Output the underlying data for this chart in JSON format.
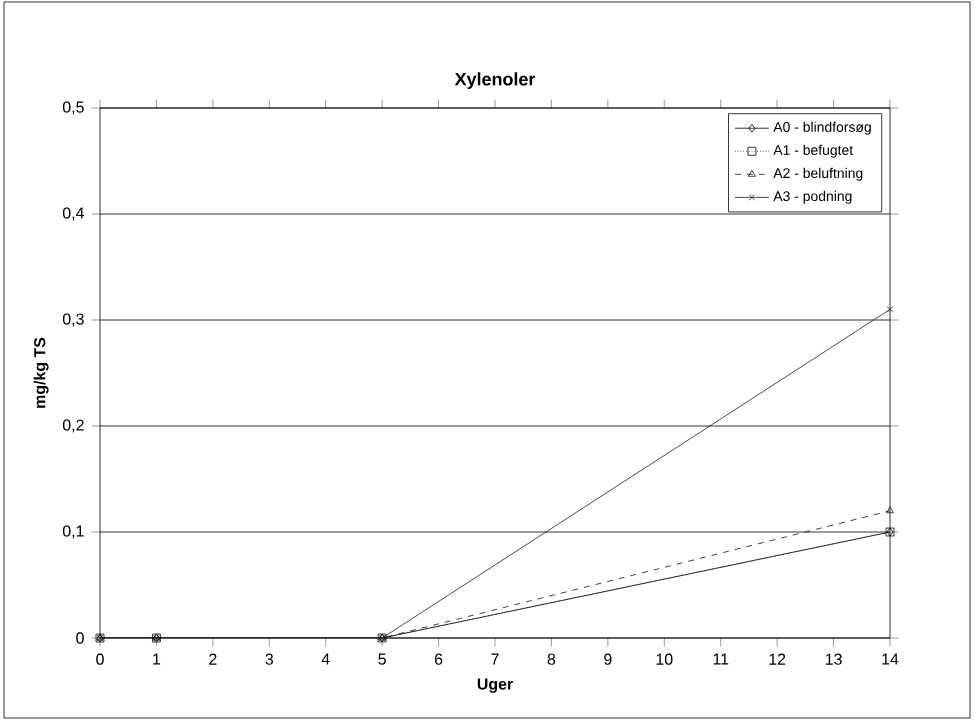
{
  "chart_data": {
    "type": "line",
    "title": "Xylenoler",
    "xlabel": "Uger",
    "ylabel": "mg/kg TS",
    "x": [
      0,
      1,
      5,
      14
    ],
    "series": [
      {
        "name": "A0 - blindforsøg",
        "color": "#000000",
        "marker": "diamond",
        "line_style": "solid",
        "values": [
          0,
          0,
          0,
          0.1
        ]
      },
      {
        "name": "A1 - befugtet",
        "color": "#0a0a0a",
        "marker": "square",
        "line_style": "dotted",
        "values": [
          0,
          0,
          0,
          0.1
        ]
      },
      {
        "name": "A2 - beluftning",
        "color": "#141414",
        "marker": "triangle",
        "line_style": "dashed",
        "values": [
          0,
          0,
          0,
          0.12
        ]
      },
      {
        "name": "A3 - podning",
        "color": "#1e1e1e",
        "marker": "cross",
        "line_style": "solid",
        "values": [
          0,
          0,
          0,
          0.31
        ]
      }
    ],
    "xlim": [
      0,
      14
    ],
    "xticks": [
      0,
      1,
      2,
      3,
      4,
      5,
      6,
      7,
      8,
      9,
      10,
      11,
      12,
      13,
      14
    ],
    "ylim": [
      0,
      0.5
    ],
    "yticks": [
      0,
      {
        "value": 0.1,
        "label": "0,1"
      },
      {
        "value": 0.2,
        "label": "0,2"
      },
      {
        "value": 0.3,
        "label": "0,3"
      },
      {
        "value": 0.4,
        "label": "0,4"
      },
      {
        "value": 0.5,
        "label": "0,5"
      }
    ],
    "grid": "y",
    "legend": "top right"
  }
}
